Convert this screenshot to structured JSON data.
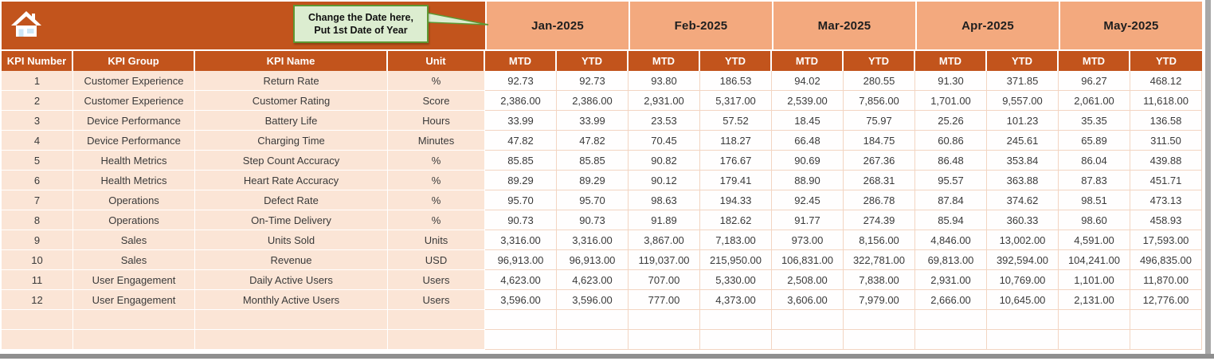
{
  "callout": {
    "line1": "Change the Date here,",
    "line2": "Put 1st Date of Year"
  },
  "icons": {
    "home": "home-icon"
  },
  "months": [
    {
      "label": "Jan-2025"
    },
    {
      "label": "Feb-2025"
    },
    {
      "label": "Mar-2025"
    },
    {
      "label": "Apr-2025"
    },
    {
      "label": "May-2025"
    }
  ],
  "table": {
    "left_headers": [
      "KPI Number",
      "KPI Group",
      "KPI Name",
      "Unit"
    ],
    "sub_headers": {
      "mtd": "MTD",
      "ytd": "YTD"
    },
    "rows": [
      {
        "num": "1",
        "group": "Customer Experience",
        "name": "Return Rate",
        "unit": "%",
        "values": [
          "92.73",
          "92.73",
          "93.80",
          "186.53",
          "94.02",
          "280.55",
          "91.30",
          "371.85",
          "96.27",
          "468.12"
        ]
      },
      {
        "num": "2",
        "group": "Customer Experience",
        "name": "Customer Rating",
        "unit": "Score",
        "values": [
          "2,386.00",
          "2,386.00",
          "2,931.00",
          "5,317.00",
          "2,539.00",
          "7,856.00",
          "1,701.00",
          "9,557.00",
          "2,061.00",
          "11,618.00"
        ]
      },
      {
        "num": "3",
        "group": "Device Performance",
        "name": "Battery Life",
        "unit": "Hours",
        "values": [
          "33.99",
          "33.99",
          "23.53",
          "57.52",
          "18.45",
          "75.97",
          "25.26",
          "101.23",
          "35.35",
          "136.58"
        ]
      },
      {
        "num": "4",
        "group": "Device Performance",
        "name": "Charging Time",
        "unit": "Minutes",
        "values": [
          "47.82",
          "47.82",
          "70.45",
          "118.27",
          "66.48",
          "184.75",
          "60.86",
          "245.61",
          "65.89",
          "311.50"
        ]
      },
      {
        "num": "5",
        "group": "Health Metrics",
        "name": "Step Count Accuracy",
        "unit": "%",
        "values": [
          "85.85",
          "85.85",
          "90.82",
          "176.67",
          "90.69",
          "267.36",
          "86.48",
          "353.84",
          "86.04",
          "439.88"
        ]
      },
      {
        "num": "6",
        "group": "Health Metrics",
        "name": "Heart Rate Accuracy",
        "unit": "%",
        "values": [
          "89.29",
          "89.29",
          "90.12",
          "179.41",
          "88.90",
          "268.31",
          "95.57",
          "363.88",
          "87.83",
          "451.71"
        ]
      },
      {
        "num": "7",
        "group": "Operations",
        "name": "Defect Rate",
        "unit": "%",
        "values": [
          "95.70",
          "95.70",
          "98.63",
          "194.33",
          "92.45",
          "286.78",
          "87.84",
          "374.62",
          "98.51",
          "473.13"
        ]
      },
      {
        "num": "8",
        "group": "Operations",
        "name": "On-Time Delivery",
        "unit": "%",
        "values": [
          "90.73",
          "90.73",
          "91.89",
          "182.62",
          "91.77",
          "274.39",
          "85.94",
          "360.33",
          "98.60",
          "458.93"
        ]
      },
      {
        "num": "9",
        "group": "Sales",
        "name": "Units Sold",
        "unit": "Units",
        "values": [
          "3,316.00",
          "3,316.00",
          "3,867.00",
          "7,183.00",
          "973.00",
          "8,156.00",
          "4,846.00",
          "13,002.00",
          "4,591.00",
          "17,593.00"
        ]
      },
      {
        "num": "10",
        "group": "Sales",
        "name": "Revenue",
        "unit": "USD",
        "values": [
          "96,913.00",
          "96,913.00",
          "119,037.00",
          "215,950.00",
          "106,831.00",
          "322,781.00",
          "69,813.00",
          "392,594.00",
          "104,241.00",
          "496,835.00"
        ]
      },
      {
        "num": "11",
        "group": "User Engagement",
        "name": "Daily Active Users",
        "unit": "Users",
        "values": [
          "4,623.00",
          "4,623.00",
          "707.00",
          "5,330.00",
          "2,508.00",
          "7,838.00",
          "2,931.00",
          "10,769.00",
          "1,101.00",
          "11,870.00"
        ]
      },
      {
        "num": "12",
        "group": "User Engagement",
        "name": "Monthly Active Users",
        "unit": "Users",
        "values": [
          "3,596.00",
          "3,596.00",
          "777.00",
          "4,373.00",
          "3,606.00",
          "7,979.00",
          "2,666.00",
          "10,645.00",
          "2,131.00",
          "12,776.00"
        ]
      }
    ],
    "empty_rows": 2
  },
  "colors": {
    "rust": "#C2541C",
    "salmon": "#F3A97E",
    "peach": "#FBE5D6",
    "grid": "#F3D5C2",
    "callout_fill": "#DCEDD0",
    "callout_border": "#5E9732"
  }
}
